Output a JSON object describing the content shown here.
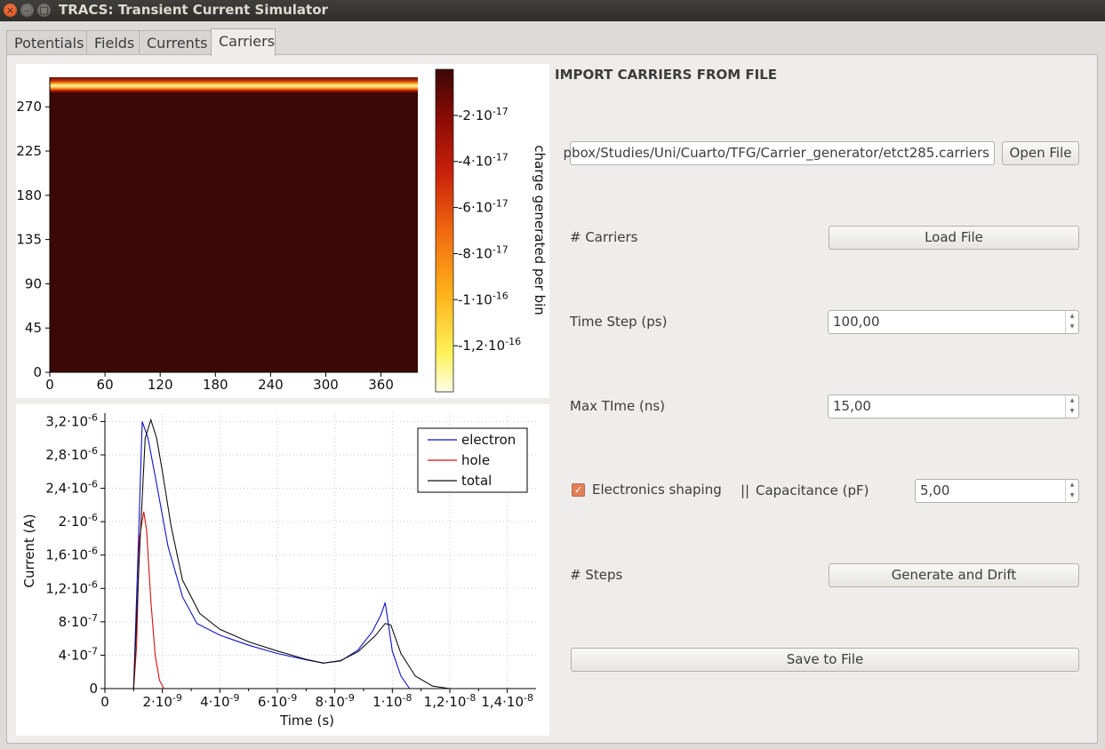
{
  "window": {
    "title": "TRACS: Transient Current Simulator",
    "close_glyph": "×",
    "minimize_glyph": "–",
    "maximize_glyph": "□"
  },
  "tabs": [
    {
      "label": "Potentials",
      "active": false
    },
    {
      "label": "Fields",
      "active": false
    },
    {
      "label": "Currents",
      "active": false
    },
    {
      "label": "Carriers",
      "active": true
    }
  ],
  "form": {
    "section_title": "IMPORT CARRIERS FROM FILE",
    "file_path": "pbox/Studies/Uni/Cuarto/TFG/Carrier_generator/etct285.carriers",
    "open_file_label": "Open File",
    "carriers_label": "# Carriers",
    "load_file_label": "Load File",
    "time_step_label": "Time Step (ps)",
    "time_step_value": "100,00",
    "max_time_label": "Max TIme (ns)",
    "max_time_value": "15,00",
    "electronics_shaping_label": "Electronics shaping",
    "electronics_shaping_checked": true,
    "separator": "||",
    "capacitance_label": "Capacitance (pF)",
    "capacitance_value": "5,00",
    "steps_label": "# Steps",
    "generate_drift_label": "Generate and Drift",
    "save_file_label": "Save to File",
    "spin_up": "▲",
    "spin_down": "▼",
    "check_glyph": "✓",
    "accent_color": "#e2805a"
  },
  "chart_data": [
    {
      "type": "heatmap",
      "title": "",
      "xlabel": "",
      "ylabel": "",
      "x_ticks": [
        "0",
        "60",
        "120",
        "180",
        "240",
        "300",
        "360"
      ],
      "y_ticks": [
        "0",
        "45",
        "90",
        "135",
        "180",
        "225",
        "270"
      ],
      "xlim": [
        0,
        400
      ],
      "ylim": [
        0,
        300
      ],
      "band": {
        "y_from": 284,
        "y_to": 300,
        "peak_y": 292
      },
      "colorbar": {
        "label": "charge generated per bin",
        "ticks": [
          {
            "value": -2e-17,
            "mant": "-2·10",
            "exp": "-17"
          },
          {
            "value": -4e-17,
            "mant": "-4·10",
            "exp": "-17"
          },
          {
            "value": -6e-17,
            "mant": "-6·10",
            "exp": "-17"
          },
          {
            "value": -8e-17,
            "mant": "-8·10",
            "exp": "-17"
          },
          {
            "value": -1e-16,
            "mant": "-1·10",
            "exp": "-16"
          },
          {
            "value": -1.2e-16,
            "mant": "-1,2·10",
            "exp": "-16"
          }
        ],
        "range": [
          -1.4e-16,
          0
        ],
        "colors": [
          "#ffffe8",
          "#fff25a",
          "#ffb31a",
          "#f06810",
          "#c9210a",
          "#8a0b05",
          "#3b0806"
        ]
      }
    },
    {
      "type": "line",
      "title": "",
      "xlabel": "Time (s)",
      "ylabel": "Current (A)",
      "xlim": [
        0,
        1.5e-08
      ],
      "ylim": [
        0,
        3.3e-06
      ],
      "grid": true,
      "legend_placement": "top-right",
      "x_ticks": [
        {
          "value": 0,
          "mant": "0",
          "exp": ""
        },
        {
          "value": 2e-09,
          "mant": "2·10",
          "exp": "-9"
        },
        {
          "value": 4e-09,
          "mant": "4·10",
          "exp": "-9"
        },
        {
          "value": 6e-09,
          "mant": "6·10",
          "exp": "-9"
        },
        {
          "value": 8e-09,
          "mant": "8·10",
          "exp": "-9"
        },
        {
          "value": 1e-08,
          "mant": "1·10",
          "exp": "-8"
        },
        {
          "value": 1.2e-08,
          "mant": "1,2·10",
          "exp": "-8"
        },
        {
          "value": 1.4e-08,
          "mant": "1,4·10",
          "exp": "-8"
        }
      ],
      "y_ticks": [
        {
          "value": 0,
          "mant": "0",
          "exp": ""
        },
        {
          "value": 4e-07,
          "mant": "4·10",
          "exp": "-7"
        },
        {
          "value": 8e-07,
          "mant": "8·10",
          "exp": "-7"
        },
        {
          "value": 1.2e-06,
          "mant": "1,2·10",
          "exp": "-6"
        },
        {
          "value": 1.6e-06,
          "mant": "1,6·10",
          "exp": "-6"
        },
        {
          "value": 2e-06,
          "mant": "2·10",
          "exp": "-6"
        },
        {
          "value": 2.4e-06,
          "mant": "2,4·10",
          "exp": "-6"
        },
        {
          "value": 2.8e-06,
          "mant": "2,8·10",
          "exp": "-6"
        },
        {
          "value": 3.2e-06,
          "mant": "3,2·10",
          "exp": "-6"
        }
      ],
      "series": [
        {
          "name": "electron",
          "color": "#1010c8",
          "x": [
            1e-09,
            1.15e-09,
            1.3e-09,
            1.5e-09,
            1.8e-09,
            2.2e-09,
            2.7e-09,
            3.2e-09,
            4e-09,
            5e-09,
            6e-09,
            7e-09,
            7.6e-09,
            8.2e-09,
            8.8e-09,
            9.3e-09,
            9.6e-09,
            9.75e-09,
            9.85e-09,
            1e-08,
            1.03e-08,
            1.06e-08
          ],
          "y": [
            0,
            1.6e-06,
            3.2e-06,
            3e-06,
            2.45e-06,
            1.7e-06,
            1.1e-06,
            7.8e-07,
            6.4e-07,
            5.2e-07,
            4.2e-07,
            3.45e-07,
            3.05e-07,
            3.3e-07,
            4.6e-07,
            6.8e-07,
            8.8e-07,
            1.03e-06,
            8e-07,
            4.5e-07,
            1.5e-07,
            0
          ]
        },
        {
          "name": "hole",
          "color": "#d01010",
          "x": [
            1e-09,
            1.1e-09,
            1.2e-09,
            1.35e-09,
            1.45e-09,
            1.6e-09,
            1.75e-09,
            1.9e-09,
            2.05e-09
          ],
          "y": [
            0,
            5e-07,
            1.8e-06,
            2.12e-06,
            1.9e-06,
            1.05e-06,
            4e-07,
            1e-07,
            0
          ]
        },
        {
          "name": "total",
          "color": "#101010",
          "x": [
            1e-09,
            1.2e-09,
            1.4e-09,
            1.6e-09,
            1.8e-09,
            2e-09,
            2.3e-09,
            2.7e-09,
            3.3e-09,
            4e-09,
            5e-09,
            6e-09,
            7e-09,
            7.6e-09,
            8.2e-09,
            8.8e-09,
            9.4e-09,
            9.75e-09,
            9.95e-09,
            1.03e-08,
            1.08e-08,
            1.14e-08,
            1.2e-08
          ],
          "y": [
            0,
            1.6e-06,
            3e-06,
            3.22e-06,
            3e-06,
            2.6e-06,
            1.95e-06,
            1.3e-06,
            9e-07,
            7.1e-07,
            5.6e-07,
            4.5e-07,
            3.5e-07,
            3.05e-07,
            3.35e-07,
            4.4e-07,
            6.3e-07,
            7.8e-07,
            7.6e-07,
            4.2e-07,
            1.5e-07,
            3e-08,
            0
          ]
        }
      ]
    }
  ]
}
